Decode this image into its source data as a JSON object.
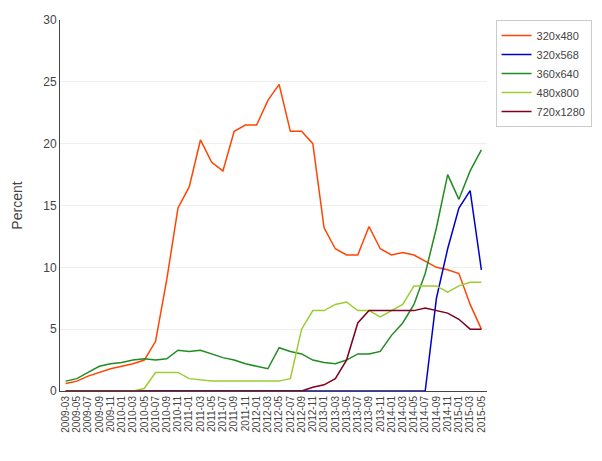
{
  "chart_data": {
    "type": "line",
    "ylabel": "Percent",
    "ylim": [
      0,
      30
    ],
    "yticks": [
      0,
      5,
      10,
      15,
      20,
      25,
      30
    ],
    "grid": true,
    "legend": "upper right",
    "categories": [
      "2009-03",
      "2009-05",
      "2009-07",
      "2009-09",
      "2009-11",
      "2010-01",
      "2010-03",
      "2010-05",
      "2010-07",
      "2010-09",
      "2010-11",
      "2011-01",
      "2011-03",
      "2011-05",
      "2011-07",
      "2011-09",
      "2011-11",
      "2012-01",
      "2012-03",
      "2012-05",
      "2012-07",
      "2012-09",
      "2012-11",
      "2013-01",
      "2013-03",
      "2013-05",
      "2013-07",
      "2013-09",
      "2013-11",
      "2014-01",
      "2014-03",
      "2014-05",
      "2014-07",
      "2014-09",
      "2014-11",
      "2015-01",
      "2015-03",
      "2015-05"
    ],
    "series": [
      {
        "name": "320x480",
        "color": "#ff4500",
        "values": [
          0.6,
          0.8,
          1.2,
          1.5,
          1.8,
          2.0,
          2.2,
          2.5,
          4.0,
          9.0,
          14.8,
          16.5,
          20.3,
          18.5,
          17.8,
          21.0,
          21.5,
          21.5,
          23.5,
          24.8,
          21.0,
          21.0,
          20.0,
          13.2,
          11.5,
          11.0,
          11.0,
          13.3,
          11.5,
          11.0,
          11.2,
          11.0,
          10.5,
          10.0,
          9.8,
          9.5,
          7.0,
          5.0
        ]
      },
      {
        "name": "320x568",
        "color": "#0000cd",
        "values": [
          0.0,
          0.0,
          0.0,
          0.0,
          0.0,
          0.0,
          0.0,
          0.0,
          0.0,
          0.0,
          0.0,
          0.0,
          0.0,
          0.0,
          0.0,
          0.0,
          0.0,
          0.0,
          0.0,
          0.0,
          0.0,
          0.0,
          0.0,
          0.0,
          0.0,
          0.0,
          0.0,
          0.0,
          0.0,
          0.0,
          0.0,
          0.0,
          0.0,
          7.5,
          11.5,
          14.8,
          16.2,
          9.8
        ]
      },
      {
        "name": "360x640",
        "color": "#228b22",
        "values": [
          0.8,
          1.0,
          1.5,
          2.0,
          2.2,
          2.3,
          2.5,
          2.6,
          2.5,
          2.6,
          3.3,
          3.2,
          3.3,
          3.0,
          2.7,
          2.5,
          2.2,
          2.0,
          1.8,
          3.5,
          3.2,
          3.0,
          2.5,
          2.3,
          2.2,
          2.5,
          3.0,
          3.0,
          3.2,
          4.5,
          5.5,
          7.0,
          9.5,
          13.2,
          17.5,
          15.5,
          17.8,
          19.5
        ]
      },
      {
        "name": "480x800",
        "color": "#9acd32",
        "values": [
          0.0,
          0.0,
          0.0,
          0.0,
          0.0,
          0.0,
          0.0,
          0.2,
          1.5,
          1.5,
          1.5,
          1.0,
          0.9,
          0.8,
          0.8,
          0.8,
          0.8,
          0.8,
          0.8,
          0.8,
          1.0,
          5.0,
          6.5,
          6.5,
          7.0,
          7.2,
          6.5,
          6.5,
          6.0,
          6.5,
          7.0,
          8.5,
          8.5,
          8.5,
          8.0,
          8.5,
          8.8,
          8.8
        ]
      },
      {
        "name": "720x1280",
        "color": "#800020",
        "values": [
          0.0,
          0.0,
          0.0,
          0.0,
          0.0,
          0.0,
          0.0,
          0.0,
          0.0,
          0.0,
          0.0,
          0.0,
          0.0,
          0.0,
          0.0,
          0.0,
          0.0,
          0.0,
          0.0,
          0.0,
          0.0,
          0.0,
          0.3,
          0.5,
          1.0,
          2.5,
          5.5,
          6.5,
          6.5,
          6.5,
          6.5,
          6.5,
          6.7,
          6.5,
          6.3,
          5.8,
          5.0,
          5.0
        ]
      }
    ]
  }
}
